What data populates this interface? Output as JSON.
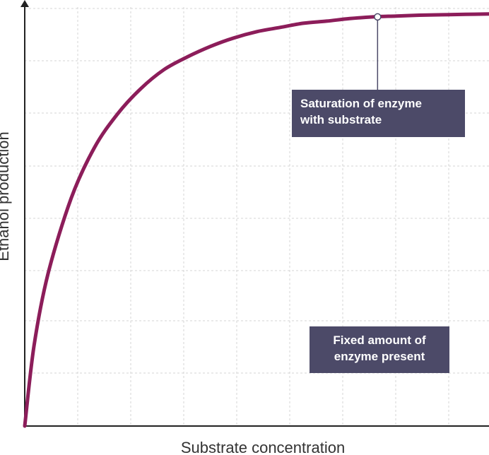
{
  "chart_data": {
    "type": "line",
    "xlabel": "Substrate concentration",
    "ylabel": "Ethanol production",
    "grid": true,
    "xlim": [
      0,
      1
    ],
    "ylim": [
      0,
      1
    ],
    "series": [
      {
        "color": "#8c1d5a",
        "points": [
          [
            0,
            0
          ],
          [
            0.02,
            0.19
          ],
          [
            0.05,
            0.36
          ],
          [
            0.1,
            0.54
          ],
          [
            0.15,
            0.66
          ],
          [
            0.2,
            0.74
          ],
          [
            0.25,
            0.8
          ],
          [
            0.3,
            0.845
          ],
          [
            0.35,
            0.875
          ],
          [
            0.4,
            0.9
          ],
          [
            0.45,
            0.92
          ],
          [
            0.5,
            0.935
          ],
          [
            0.55,
            0.945
          ],
          [
            0.6,
            0.955
          ],
          [
            0.65,
            0.96
          ],
          [
            0.7,
            0.966
          ],
          [
            0.75,
            0.97
          ],
          [
            0.8,
            0.972
          ],
          [
            0.85,
            0.974
          ],
          [
            0.9,
            0.975
          ],
          [
            0.95,
            0.976
          ],
          [
            1.0,
            0.977
          ]
        ]
      }
    ],
    "annotations": [
      {
        "id": "saturation",
        "lines": [
          "Saturation of enzyme",
          "with substrate"
        ],
        "x": 0.76,
        "y": 0.97
      },
      {
        "id": "fixed",
        "lines": [
          "Fixed amount of",
          "enzyme present"
        ]
      }
    ],
    "colors": {
      "curve": "#8c1d5a",
      "callout_bg": "#4c4a68",
      "callout_text": "#ffffff",
      "grid": "#d4d4d4",
      "axis": "#222222"
    }
  }
}
